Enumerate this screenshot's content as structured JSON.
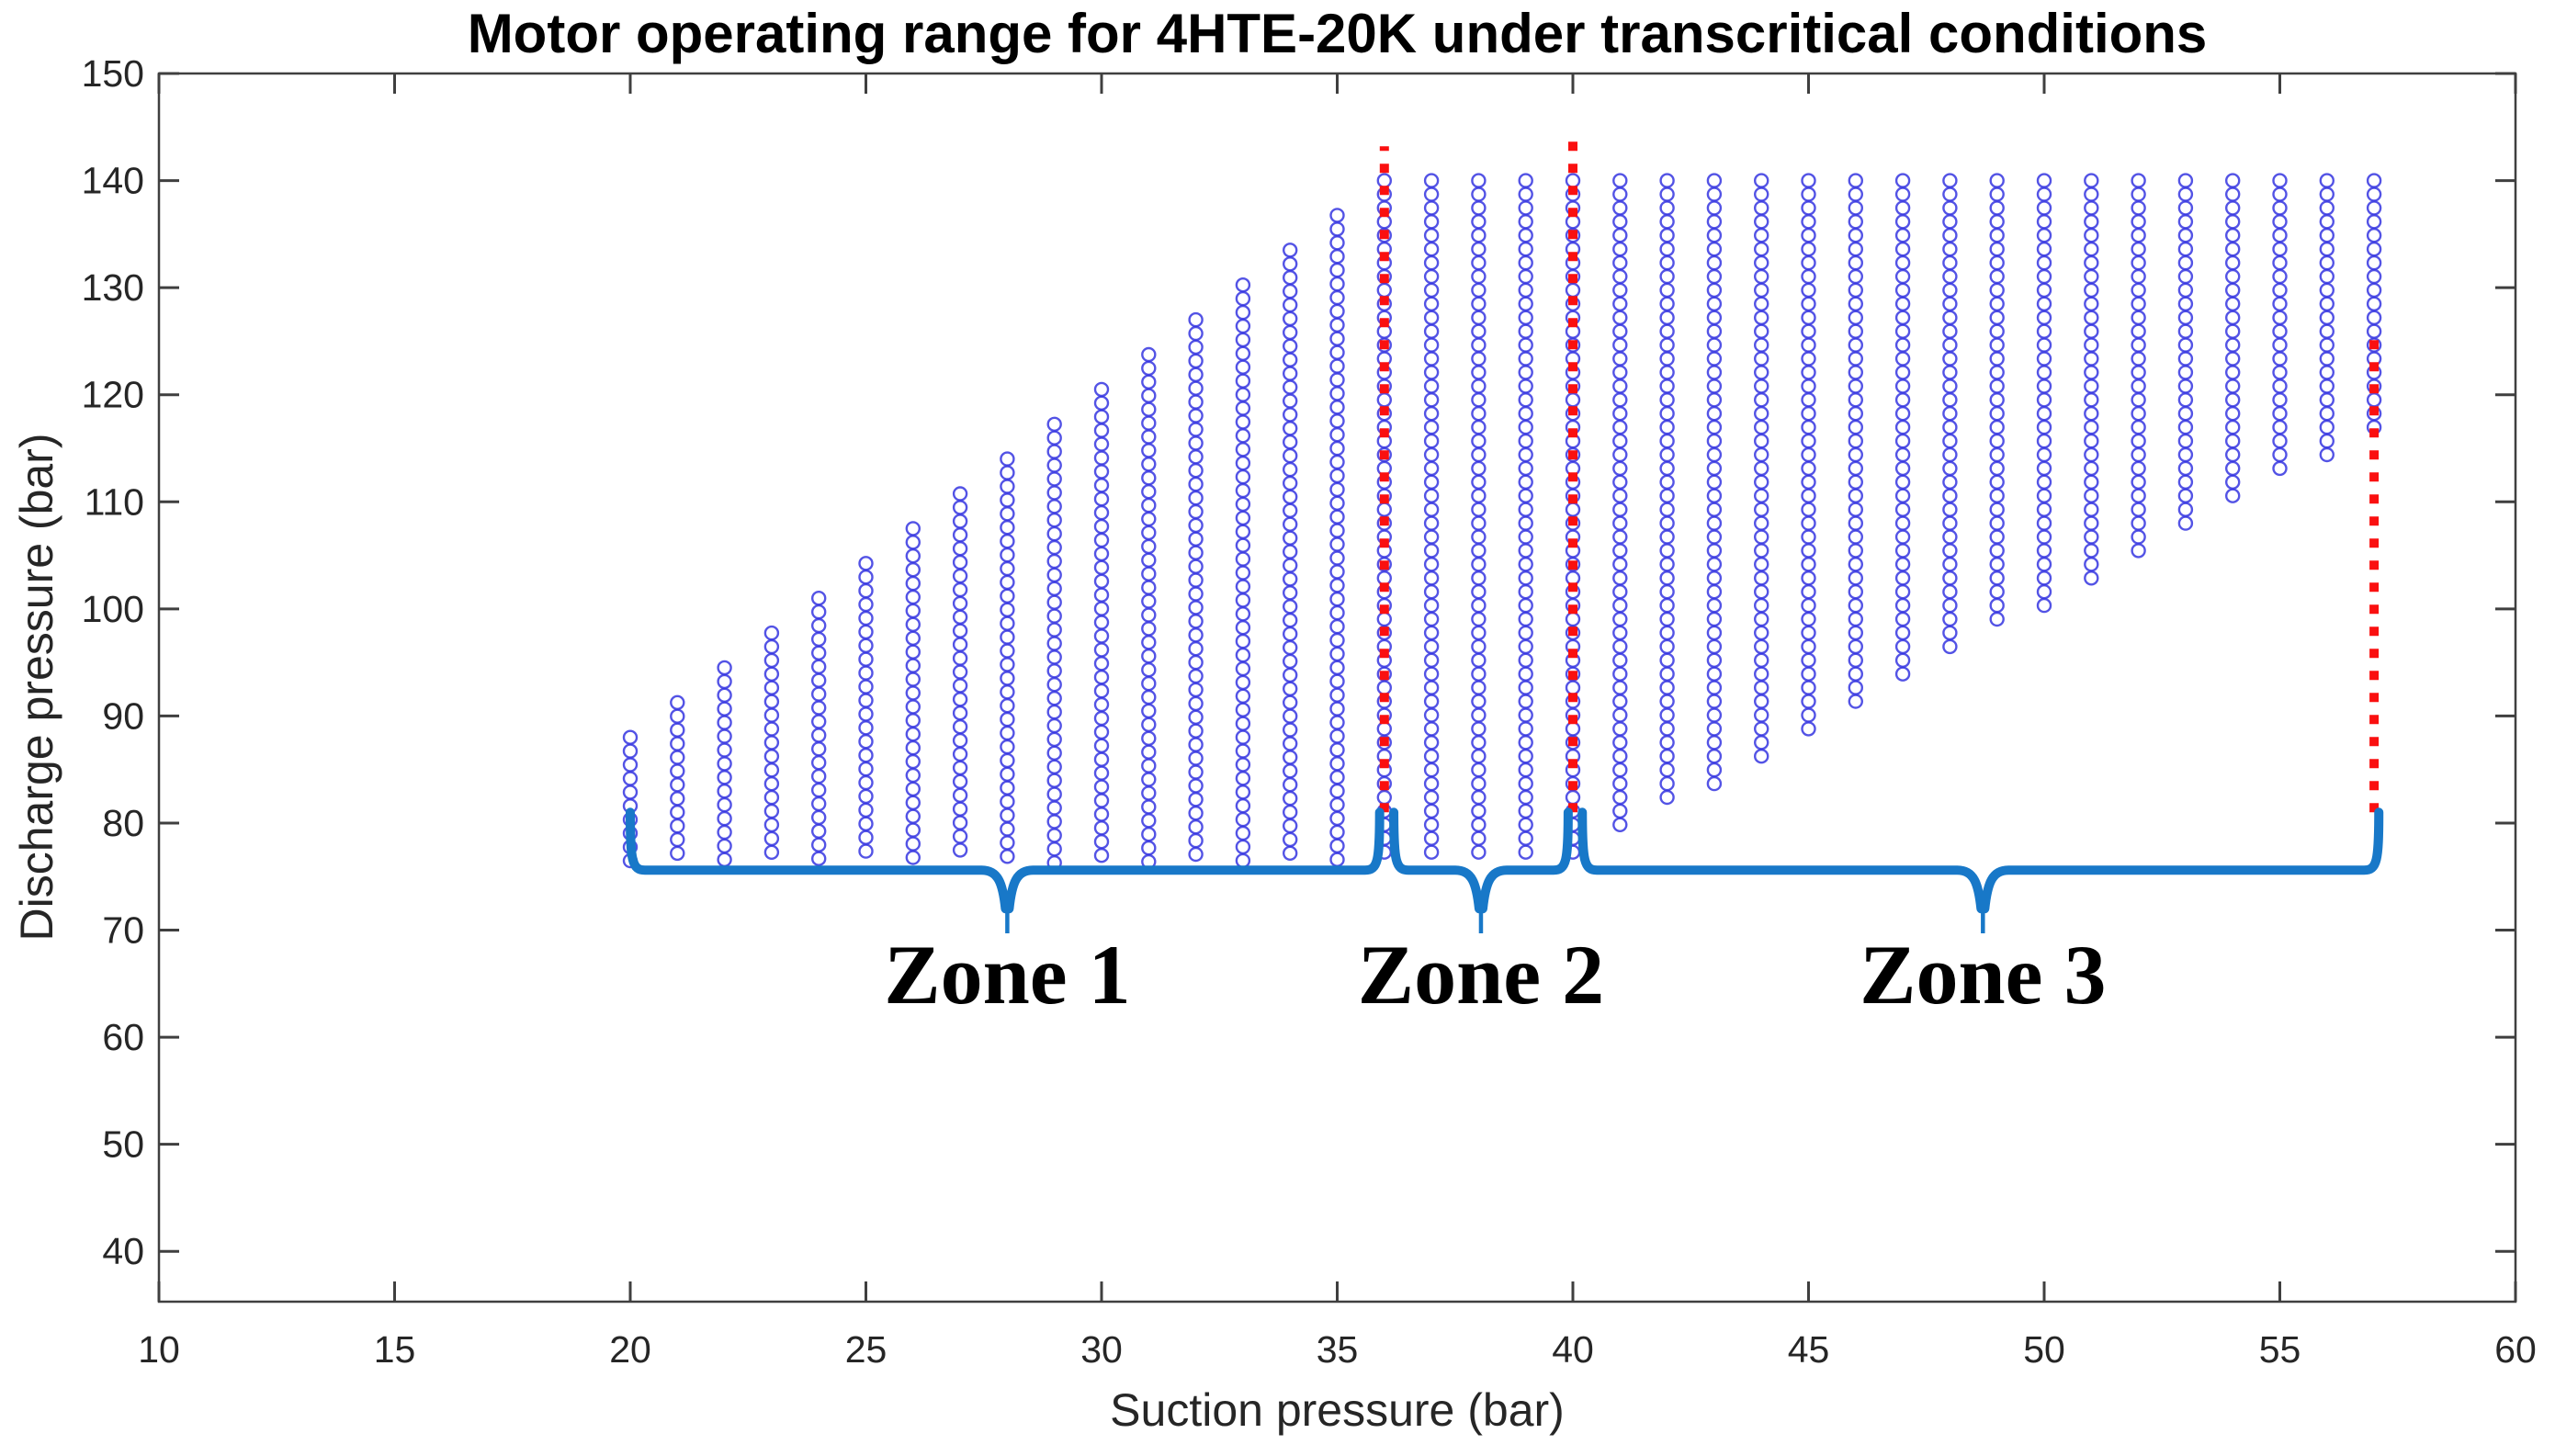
{
  "figure": {
    "kind": "matlab-style-plot",
    "background": "#ffffff"
  },
  "chart_data": {
    "type": "scatter",
    "title": "Motor operating range for 4HTE-20K under transcritical conditions",
    "xlabel": "Suction pressure (bar)",
    "ylabel": "Discharge pressure (bar)",
    "xlim": [
      10,
      60
    ],
    "ylim": [
      35.3,
      150
    ],
    "xticks": [
      10,
      15,
      20,
      25,
      30,
      35,
      40,
      45,
      50,
      55,
      60
    ],
    "yticks": [
      40,
      50,
      60,
      70,
      80,
      90,
      100,
      110,
      120,
      130,
      140,
      150
    ],
    "grid": false,
    "legend": null,
    "marker": {
      "shape": "circle-open",
      "radius_px": 7,
      "color": "#3535e0",
      "stroke_px": 2.4,
      "opacity": 0.85
    },
    "point_spacing_bar": 1.28,
    "columns": [
      {
        "suction": 20,
        "discharge_min": 76.6,
        "discharge_max": 88.0
      },
      {
        "suction": 21,
        "discharge_min": 76.6,
        "discharge_max": 91.25
      },
      {
        "suction": 22,
        "discharge_min": 76.6,
        "discharge_max": 94.5
      },
      {
        "suction": 23,
        "discharge_min": 76.6,
        "discharge_max": 97.75
      },
      {
        "suction": 24,
        "discharge_min": 76.6,
        "discharge_max": 101.0
      },
      {
        "suction": 25,
        "discharge_min": 76.6,
        "discharge_max": 104.25
      },
      {
        "suction": 26,
        "discharge_min": 76.6,
        "discharge_max": 107.5
      },
      {
        "suction": 27,
        "discharge_min": 76.6,
        "discharge_max": 110.75
      },
      {
        "suction": 28,
        "discharge_min": 76.6,
        "discharge_max": 114.0
      },
      {
        "suction": 29,
        "discharge_min": 76.6,
        "discharge_max": 117.25
      },
      {
        "suction": 30,
        "discharge_min": 76.6,
        "discharge_max": 120.5
      },
      {
        "suction": 31,
        "discharge_min": 76.6,
        "discharge_max": 123.75
      },
      {
        "suction": 32,
        "discharge_min": 76.6,
        "discharge_max": 127.0
      },
      {
        "suction": 33,
        "discharge_min": 76.6,
        "discharge_max": 130.25
      },
      {
        "suction": 34,
        "discharge_min": 76.6,
        "discharge_max": 133.5
      },
      {
        "suction": 35,
        "discharge_min": 76.6,
        "discharge_max": 136.75
      },
      {
        "suction": 36,
        "discharge_min": 76.6,
        "discharge_max": 140.0
      },
      {
        "suction": 37,
        "discharge_min": 76.6,
        "discharge_max": 140.0
      },
      {
        "suction": 38,
        "discharge_min": 76.6,
        "discharge_max": 140.0
      },
      {
        "suction": 39,
        "discharge_min": 76.6,
        "discharge_max": 140.0
      },
      {
        "suction": 40,
        "discharge_min": 76.6,
        "discharge_max": 140.0
      },
      {
        "suction": 41,
        "discharge_min": 79.2,
        "discharge_max": 140.0
      },
      {
        "suction": 42,
        "discharge_min": 81.6,
        "discharge_max": 140.0
      },
      {
        "suction": 43,
        "discharge_min": 83.9,
        "discharge_max": 140.0
      },
      {
        "suction": 44,
        "discharge_min": 86.3,
        "discharge_max": 140.0
      },
      {
        "suction": 45,
        "discharge_min": 88.6,
        "discharge_max": 140.0
      },
      {
        "suction": 46,
        "discharge_min": 91.0,
        "discharge_max": 140.0
      },
      {
        "suction": 47,
        "discharge_min": 93.4,
        "discharge_max": 140.0
      },
      {
        "suction": 48,
        "discharge_min": 95.7,
        "discharge_max": 140.0
      },
      {
        "suction": 49,
        "discharge_min": 98.1,
        "discharge_max": 140.0
      },
      {
        "suction": 50,
        "discharge_min": 100.4,
        "discharge_max": 140.0
      },
      {
        "suction": 51,
        "discharge_min": 102.8,
        "discharge_max": 140.0
      },
      {
        "suction": 52,
        "discharge_min": 105.2,
        "discharge_max": 140.0
      },
      {
        "suction": 53,
        "discharge_min": 107.5,
        "discharge_max": 140.0
      },
      {
        "suction": 54,
        "discharge_min": 109.9,
        "discharge_max": 140.0
      },
      {
        "suction": 55,
        "discharge_min": 112.2,
        "discharge_max": 140.0
      },
      {
        "suction": 56,
        "discharge_min": 114.6,
        "discharge_max": 140.0
      },
      {
        "suction": 57,
        "discharge_min": 117.0,
        "discharge_max": 140.0
      }
    ],
    "red_lines": [
      {
        "x": 36,
        "y_from": 81,
        "y_to": 143.2
      },
      {
        "x": 40,
        "y_from": 81,
        "y_to": 144.0
      },
      {
        "x": 57,
        "y_from": 81,
        "y_to": 125.8
      }
    ],
    "braces": [
      {
        "label": "Zone 1",
        "x_from": 20.0,
        "x_to": 35.9,
        "cusp_x": 28.0,
        "line_y": 75.6,
        "end_rise_y": 81,
        "tip_y": 72,
        "stem_end_y": 69.7,
        "label_y": 65.8
      },
      {
        "label": "Zone 2",
        "x_from": 36.2,
        "x_to": 39.9,
        "cusp_x": 38.05,
        "line_y": 75.6,
        "end_rise_y": 81,
        "tip_y": 72,
        "stem_end_y": 69.7,
        "label_y": 65.8
      },
      {
        "label": "Zone 3",
        "x_from": 40.2,
        "x_to": 57.1,
        "cusp_x": 48.7,
        "line_y": 75.6,
        "end_rise_y": 81,
        "tip_y": 72,
        "stem_end_y": 69.7,
        "label_y": 65.8
      }
    ],
    "colors": {
      "marker": "#3535e0",
      "red_line": "#fa1010",
      "brace": "#1878c8",
      "axis": "#3f3f3f",
      "tick_text": "#262626",
      "title_text": "#000000"
    }
  }
}
